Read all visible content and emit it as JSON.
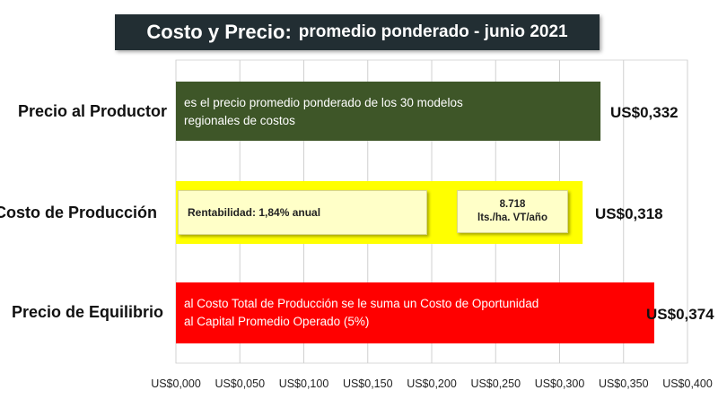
{
  "title": {
    "main": "Costo  y Precio:",
    "sub": "promedio ponderado - junio 2021"
  },
  "chart_data": {
    "type": "bar",
    "orientation": "horizontal",
    "title": "Costo  y Precio: promedio ponderado - junio 2021",
    "categories": [
      "Precio al Productor",
      "Costo de Producción",
      "Precio de Equilibrio"
    ],
    "values": [
      0.332,
      0.318,
      0.374
    ],
    "value_labels": [
      "US$0,332",
      "US$0,318",
      "US$0,374"
    ],
    "colors": [
      "#3e5628",
      "#ffff00",
      "#ff0000"
    ],
    "xlim": [
      0,
      0.4
    ],
    "xticks": [
      0,
      0.05,
      0.1,
      0.15,
      0.2,
      0.25,
      0.3,
      0.35,
      0.4
    ],
    "xtick_labels": [
      "US$0,000",
      "US$0,050",
      "US$0,100",
      "US$0,150",
      "US$0,200",
      "US$0,250",
      "US$0,300",
      "US$0,350",
      "US$0,400"
    ],
    "grid": "vertical",
    "annotations": {
      "productor": [
        "es el precio promedio ponderado de los 30 modelos",
        "regionales de costos"
      ],
      "rentabilidad": "Rentabilidad: 1,84% anual",
      "litros": [
        "8.718",
        "lts./ha. VT/año"
      ],
      "equilibrio": [
        "al Costo Total de Producción se le suma un Costo de Oportunidad",
        "al Capital Promedio Operado (5%)"
      ]
    }
  }
}
